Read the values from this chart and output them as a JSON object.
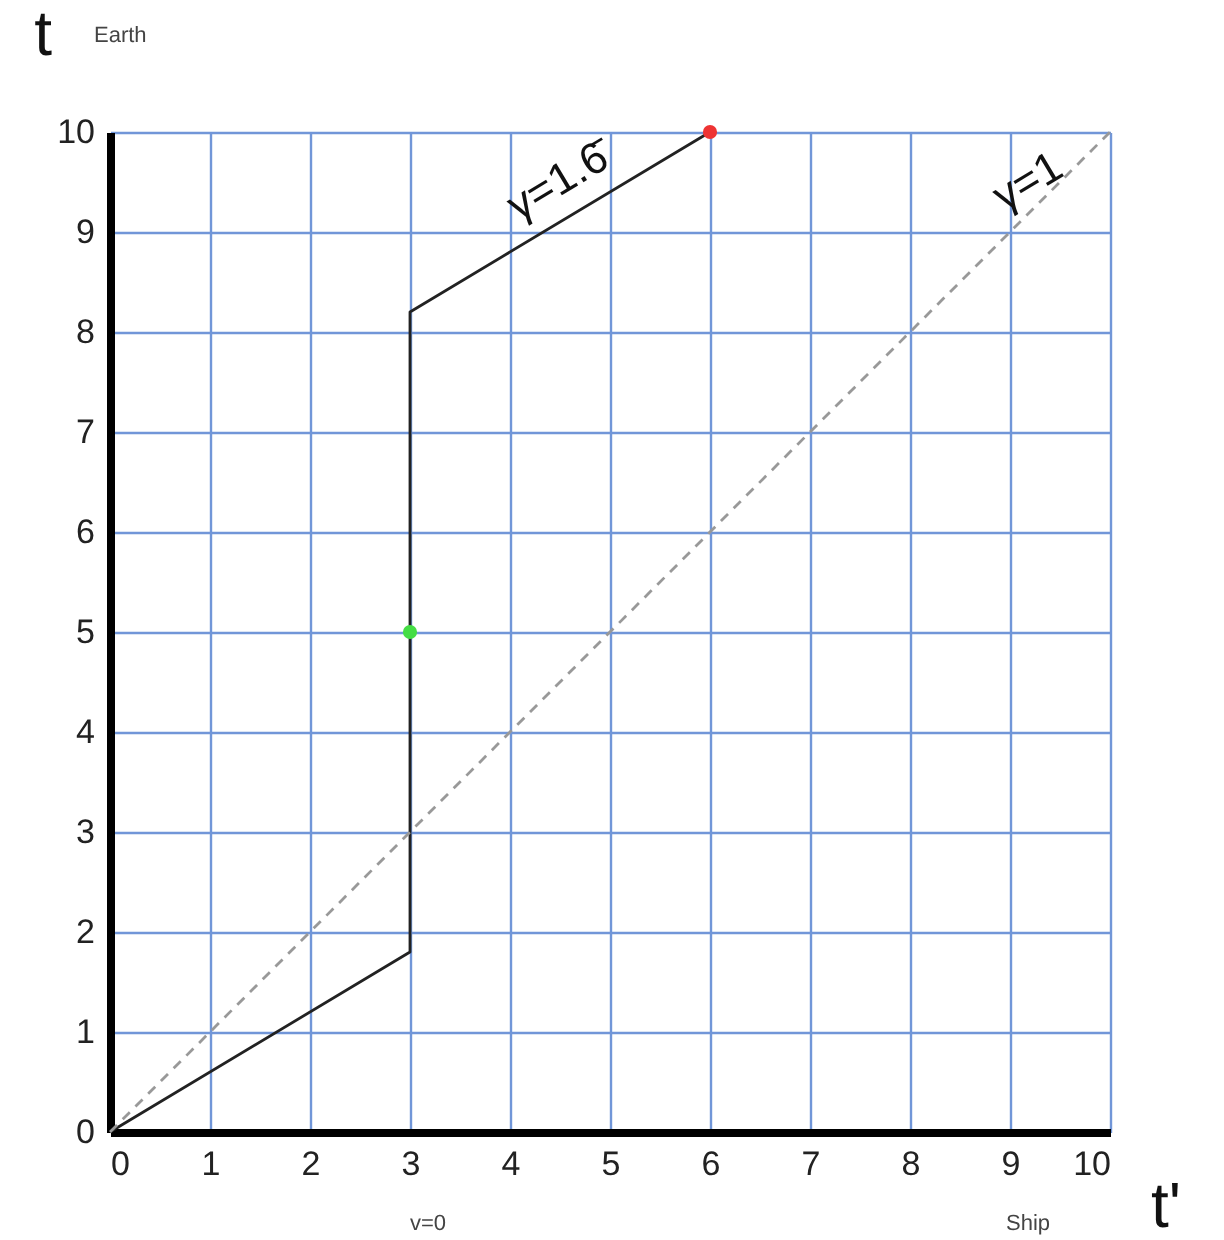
{
  "chart_data": {
    "type": "line",
    "xlabel": "t'",
    "ylabel": "t",
    "xlim": [
      0,
      10
    ],
    "ylim": [
      0,
      10
    ],
    "xticks": [
      0,
      1,
      2,
      3,
      4,
      5,
      6,
      7,
      8,
      9,
      10
    ],
    "yticks": [
      0,
      1,
      2,
      3,
      4,
      5,
      6,
      7,
      8,
      9,
      10
    ],
    "grid": true,
    "series": [
      {
        "color": "#222222",
        "x": [
          0,
          3,
          3,
          6
        ],
        "values": [
          0,
          1.8,
          8.2,
          10
        ]
      },
      {
        "type": "line",
        "color": "#999999",
        "line_style": "dashed",
        "x": [
          0,
          10
        ],
        "values": [
          0,
          10
        ]
      },
      {
        "type": "scatter",
        "colors": [
          "#44dd44",
          "#ee3333"
        ],
        "x": [
          3,
          6
        ],
        "values": [
          5,
          10
        ]
      }
    ],
    "annotations": [
      {
        "text": "γ=1.6̄",
        "x": 4.6,
        "y": 9.3
      },
      {
        "text": "γ=1",
        "x": 9.3,
        "y": 9.3
      },
      "Earth",
      "Ship",
      "v=0"
    ]
  }
}
